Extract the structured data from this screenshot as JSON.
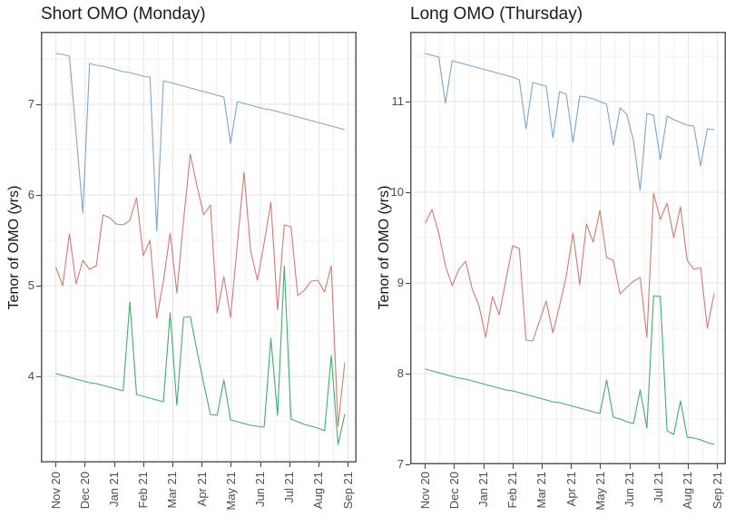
{
  "figure_title": "",
  "style": {
    "background": "#ffffff",
    "panel_border": "#5a5a5a",
    "grid_major": "#e3e3e3",
    "grid_minor": "#f0f0f0",
    "tick_text_color": "#4d4d4d",
    "title_text_color": "#1b1b1b",
    "series_blue": "#7ea6cf",
    "series_red": "#d57a72",
    "series_green": "#3fae6c"
  },
  "chart_data": [
    {
      "type": "line",
      "title": "Short OMO (Monday)",
      "ylabel": "Tenor of OMO (yrs)",
      "xlabel": "",
      "legend": "none",
      "grid": "on",
      "x_unit": "week_index",
      "x_tick_labels": [
        "Nov 20",
        "Dec 20",
        "Jan 21",
        "Feb 21",
        "Mar 21",
        "Apr 21",
        "May 21",
        "Jun 21",
        "Jul 21",
        "Aug 21",
        "Sep 21"
      ],
      "y_ticks": [
        4,
        5,
        6,
        7
      ],
      "ylim": [
        3.05,
        7.8
      ],
      "series": [
        {
          "name": "blue",
          "color": "#7ea6cf",
          "values": [
            7.56,
            7.55,
            7.53,
            6.67,
            5.8,
            7.45,
            7.43,
            7.42,
            7.4,
            7.38,
            7.36,
            7.35,
            7.33,
            7.31,
            7.3,
            5.6,
            7.26,
            7.24,
            7.22,
            7.2,
            7.18,
            7.16,
            7.14,
            7.12,
            7.1,
            7.08,
            6.57,
            7.03,
            7.01,
            6.99,
            6.97,
            6.95,
            6.94,
            6.92,
            6.9,
            6.88,
            6.86,
            6.84,
            6.82,
            6.8,
            6.78,
            6.76,
            6.74,
            6.72
          ]
        },
        {
          "name": "red",
          "color": "#d57a72",
          "values": [
            5.2,
            5.0,
            5.57,
            5.02,
            5.28,
            5.18,
            5.22,
            5.78,
            5.75,
            5.68,
            5.67,
            5.72,
            5.97,
            5.33,
            5.5,
            4.64,
            5.05,
            5.58,
            4.92,
            5.72,
            6.45,
            6.1,
            5.78,
            5.89,
            4.7,
            5.1,
            4.65,
            5.45,
            6.25,
            5.38,
            5.06,
            5.47,
            5.92,
            4.73,
            5.67,
            5.65,
            4.89,
            4.95,
            5.05,
            5.06,
            4.93,
            5.22,
            3.45,
            4.15
          ]
        },
        {
          "name": "green",
          "color": "#3fae6c",
          "values": [
            4.03,
            4.01,
            3.99,
            3.97,
            3.95,
            3.93,
            3.92,
            3.9,
            3.88,
            3.86,
            3.84,
            4.82,
            3.8,
            3.78,
            3.76,
            3.74,
            3.72,
            4.7,
            3.68,
            4.65,
            4.66,
            4.28,
            3.92,
            3.58,
            3.57,
            3.96,
            3.52,
            3.5,
            3.48,
            3.46,
            3.45,
            3.44,
            4.42,
            3.57,
            5.22,
            3.53,
            3.5,
            3.47,
            3.45,
            3.43,
            3.4,
            4.23,
            3.25,
            3.58
          ]
        }
      ]
    },
    {
      "type": "line",
      "title": "Long OMO (Thursday)",
      "ylabel": "Tenor of OMO (yrs)",
      "xlabel": "",
      "legend": "none",
      "grid": "on",
      "x_unit": "week_index",
      "x_tick_labels": [
        "Nov 20",
        "Dec 20",
        "Jan 21",
        "Feb 21",
        "Mar 21",
        "Apr 21",
        "May 21",
        "Jun 21",
        "Jul 21",
        "Aug 21",
        "Sep 21"
      ],
      "y_ticks": [
        7,
        8,
        9,
        10,
        11
      ],
      "ylim": [
        7.0,
        11.77
      ],
      "series": [
        {
          "name": "blue",
          "color": "#7ea6cf",
          "values": [
            11.53,
            11.51,
            11.49,
            10.98,
            11.45,
            11.43,
            11.41,
            11.39,
            11.37,
            11.35,
            11.33,
            11.31,
            11.29,
            11.27,
            11.24,
            10.7,
            11.21,
            11.19,
            11.17,
            10.6,
            11.11,
            11.08,
            10.55,
            11.06,
            11.05,
            11.03,
            11.0,
            10.97,
            10.52,
            10.93,
            10.86,
            10.57,
            10.02,
            10.87,
            10.85,
            10.36,
            10.84,
            10.8,
            10.77,
            10.74,
            10.73,
            10.29,
            10.7,
            10.69
          ]
        },
        {
          "name": "red",
          "color": "#d57a72",
          "values": [
            9.66,
            9.81,
            9.55,
            9.19,
            8.97,
            9.15,
            9.24,
            8.93,
            8.75,
            8.4,
            8.85,
            8.65,
            9.03,
            9.41,
            9.38,
            8.37,
            8.36,
            8.58,
            8.8,
            8.45,
            8.75,
            9.08,
            9.55,
            8.98,
            9.65,
            9.45,
            9.8,
            9.28,
            9.25,
            8.88,
            8.95,
            9.02,
            9.06,
            8.4,
            9.99,
            9.7,
            9.88,
            9.5,
            9.84,
            9.25,
            9.15,
            9.17,
            8.5,
            8.88
          ]
        },
        {
          "name": "green",
          "color": "#3fae6c",
          "values": [
            8.05,
            8.03,
            8.01,
            7.99,
            7.97,
            7.95,
            7.94,
            7.92,
            7.9,
            7.88,
            7.86,
            7.84,
            7.82,
            7.81,
            7.79,
            7.77,
            7.75,
            7.73,
            7.71,
            7.69,
            7.68,
            7.66,
            7.64,
            7.62,
            7.6,
            7.58,
            7.56,
            7.93,
            7.52,
            7.5,
            7.47,
            7.45,
            7.82,
            7.4,
            8.86,
            8.85,
            7.37,
            7.33,
            7.7,
            7.3,
            7.29,
            7.27,
            7.24,
            7.22
          ]
        }
      ]
    }
  ]
}
